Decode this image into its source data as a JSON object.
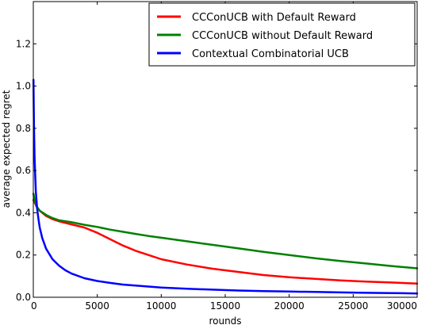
{
  "chart_data": {
    "type": "line",
    "title": "",
    "xlabel": "rounds",
    "ylabel": "average expected regret",
    "xlim": [
      0,
      30000
    ],
    "ylim": [
      0,
      1.4
    ],
    "x_ticks": [
      0,
      5000,
      10000,
      15000,
      20000,
      25000,
      30000
    ],
    "x_tick_labels": [
      "0",
      "5000",
      "10000",
      "15000",
      "20000",
      "25000",
      "30000"
    ],
    "y_ticks": [
      0,
      0.2,
      0.4,
      0.6,
      0.8,
      1.0,
      1.2
    ],
    "y_tick_labels": [
      "0.0",
      "0.2",
      "0.4",
      "0.6",
      "0.8",
      "1.0",
      "1.2"
    ],
    "grid": false,
    "legend_position": "top-right",
    "series": [
      {
        "name": "CCConUCB with Default Reward",
        "color": "#ff0000",
        "x": [
          10,
          100,
          250,
          500,
          1000,
          1500,
          2000,
          3000,
          4000,
          5000,
          6000,
          7000,
          8000,
          9000,
          10000,
          12000,
          14000,
          16000,
          18000,
          20000,
          22000,
          24000,
          26000,
          28000,
          30000
        ],
        "y": [
          0.46,
          0.45,
          0.43,
          0.41,
          0.385,
          0.37,
          0.36,
          0.345,
          0.33,
          0.305,
          0.275,
          0.245,
          0.22,
          0.2,
          0.18,
          0.155,
          0.135,
          0.12,
          0.105,
          0.095,
          0.087,
          0.08,
          0.074,
          0.07,
          0.065
        ]
      },
      {
        "name": "CCConUCB without Default Reward",
        "color": "#008000",
        "x": [
          10,
          100,
          250,
          500,
          1000,
          1500,
          2000,
          3000,
          4000,
          5000,
          6000,
          7000,
          8000,
          9000,
          10000,
          12000,
          14000,
          16000,
          18000,
          20000,
          22000,
          24000,
          26000,
          28000,
          30000
        ],
        "y": [
          0.49,
          0.46,
          0.43,
          0.41,
          0.39,
          0.375,
          0.365,
          0.355,
          0.343,
          0.333,
          0.32,
          0.31,
          0.3,
          0.29,
          0.282,
          0.265,
          0.248,
          0.232,
          0.215,
          0.2,
          0.185,
          0.172,
          0.16,
          0.148,
          0.137
        ]
      },
      {
        "name": "Contextual Combinatorial UCB",
        "color": "#0000ff",
        "x": [
          10,
          50,
          100,
          200,
          300,
          400,
          500,
          700,
          1000,
          1500,
          2000,
          2500,
          3000,
          4000,
          5000,
          6000,
          7000,
          8000,
          10000,
          12000,
          14000,
          16000,
          18000,
          20000,
          22000,
          24000,
          26000,
          28000,
          30000
        ],
        "y": [
          1.03,
          0.82,
          0.66,
          0.5,
          0.42,
          0.37,
          0.33,
          0.28,
          0.23,
          0.18,
          0.15,
          0.128,
          0.112,
          0.09,
          0.077,
          0.068,
          0.06,
          0.055,
          0.046,
          0.04,
          0.036,
          0.032,
          0.029,
          0.027,
          0.025,
          0.023,
          0.021,
          0.02,
          0.018
        ]
      }
    ]
  }
}
